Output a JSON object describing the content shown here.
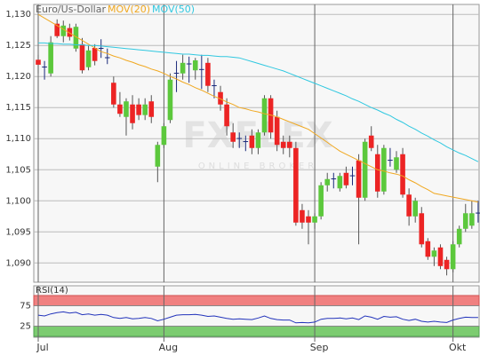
{
  "chart_data": {
    "type": "candlestick",
    "title": "Euro/Us-Dollar",
    "watermark": "FXFLEX",
    "watermark_sub": "ONLINE BROKER",
    "categories": [
      "Jul",
      null,
      null,
      null,
      null,
      null,
      null,
      null,
      null,
      null,
      null,
      null,
      null,
      null,
      null,
      null,
      null,
      null,
      null,
      null,
      "Aug",
      null,
      null,
      null,
      null,
      null,
      null,
      null,
      null,
      null,
      null,
      null,
      null,
      null,
      null,
      null,
      null,
      null,
      null,
      null,
      null,
      null,
      null,
      null,
      "Sep",
      null,
      null,
      null,
      null,
      null,
      null,
      null,
      null,
      null,
      null,
      null,
      null,
      null,
      null,
      null,
      null,
      null,
      null,
      null,
      null,
      null,
      "Okt",
      null,
      null,
      null,
      null
    ],
    "ylim": [
      1.0869,
      1.1316
    ],
    "yticks": [
      {
        "value": 1.09,
        "label": "1,090"
      },
      {
        "value": 1.095,
        "label": "1,095"
      },
      {
        "value": 1.1,
        "label": "1,100"
      },
      {
        "value": 1.105,
        "label": "1,105"
      },
      {
        "value": 1.11,
        "label": "1,110"
      },
      {
        "value": 1.115,
        "label": "1,115"
      },
      {
        "value": 1.12,
        "label": "1,120"
      },
      {
        "value": 1.125,
        "label": "1,125"
      },
      {
        "value": 1.13,
        "label": "1,130"
      }
    ],
    "grid": true,
    "up_color": "#5cc83c",
    "down_color": "#ec2424",
    "doji_color": "#1a2a7a",
    "open": [
      1.1227,
      1.1215,
      1.1205,
      1.1285,
      1.1265,
      1.1278,
      1.1245,
      1.1252,
      1.1215,
      1.1246,
      1.1245,
      1.123,
      1.119,
      1.1155,
      1.1135,
      1.1155,
      1.1155,
      1.1138,
      1.116,
      1.1055,
      1.109,
      1.113,
      1.1205,
      1.1205,
      1.122,
      1.121,
      1.1212,
      1.1222,
      1.1185,
      1.1175,
      1.1155,
      1.111,
      1.11,
      1.1096,
      1.1105,
      1.1085,
      1.111,
      1.1165,
      1.1135,
      1.1095,
      1.1095,
      1.1085,
      1.0985,
      1.0975,
      1.0965,
      1.0975,
      1.1025,
      1.1035,
      1.102,
      1.1045,
      1.104,
      1.1065,
      1.1005,
      1.1105,
      1.1075,
      1.1015,
      1.1065,
      1.105,
      1.1075,
      1.101,
      1.0975,
      1.098,
      1.0935,
      1.091,
      1.0925,
      1.0905,
      1.089,
      1.093,
      1.0955,
      1.096,
      1.098
    ],
    "high": [
      1.1235,
      1.1225,
      1.1265,
      1.1292,
      1.129,
      1.1285,
      1.1285,
      1.1262,
      1.125,
      1.1252,
      1.126,
      1.1245,
      1.12,
      1.1175,
      1.1165,
      1.117,
      1.1165,
      1.1165,
      1.117,
      1.1095,
      1.1125,
      1.1205,
      1.1225,
      1.1235,
      1.1232,
      1.123,
      1.1235,
      1.123,
      1.1195,
      1.1185,
      1.1165,
      1.1125,
      1.111,
      1.1105,
      1.1115,
      1.1115,
      1.117,
      1.117,
      1.1145,
      1.1105,
      1.1105,
      1.1095,
      1.0995,
      1.0985,
      1.098,
      1.103,
      1.1045,
      1.1045,
      1.1045,
      1.1055,
      1.1055,
      1.1075,
      1.11,
      1.112,
      1.109,
      1.109,
      1.1085,
      1.108,
      1.1085,
      1.102,
      1.1005,
      1.099,
      1.094,
      1.0925,
      1.093,
      1.091,
      1.0935,
      1.096,
      1.0995,
      1.1,
      1.1
    ],
    "low": [
      1.1205,
      1.1195,
      1.12,
      1.1262,
      1.1255,
      1.1258,
      1.124,
      1.1205,
      1.121,
      1.1218,
      1.123,
      1.122,
      1.115,
      1.1135,
      1.1105,
      1.1115,
      1.113,
      1.113,
      1.1125,
      1.103,
      1.1085,
      1.1125,
      1.1175,
      1.1195,
      1.119,
      1.1195,
      1.118,
      1.1175,
      1.1165,
      1.1145,
      1.1105,
      1.1085,
      1.1085,
      1.108,
      1.1075,
      1.1075,
      1.1105,
      1.11,
      1.108,
      1.1075,
      1.107,
      1.096,
      1.0955,
      1.093,
      1.0955,
      1.097,
      1.1015,
      1.102,
      1.1015,
      1.102,
      1.1025,
      1.093,
      1.1,
      1.108,
      1.1005,
      1.101,
      1.1055,
      1.1045,
      1.1005,
      1.096,
      1.0965,
      1.0925,
      1.0905,
      1.0895,
      1.089,
      1.088,
      1.0885,
      1.0925,
      1.095,
      1.0955,
      1.0965
    ],
    "close": [
      1.1219,
      1.1216,
      1.1255,
      1.1265,
      1.1282,
      1.1264,
      1.128,
      1.121,
      1.1242,
      1.1225,
      1.1246,
      1.1231,
      1.1155,
      1.114,
      1.116,
      1.1125,
      1.1138,
      1.1155,
      1.1135,
      1.109,
      1.112,
      1.1195,
      1.1206,
      1.1222,
      1.1221,
      1.1226,
      1.1211,
      1.1185,
      1.1186,
      1.1155,
      1.112,
      1.1095,
      1.1101,
      1.1095,
      1.1085,
      1.111,
      1.1165,
      1.111,
      1.109,
      1.1085,
      1.1085,
      1.0965,
      1.0965,
      1.0965,
      1.0975,
      1.1025,
      1.1035,
      1.1036,
      1.104,
      1.1025,
      1.1041,
      1.1005,
      1.1095,
      1.1085,
      1.1015,
      1.1085,
      1.1066,
      1.107,
      1.101,
      1.0975,
      1.1,
      1.093,
      1.091,
      1.092,
      1.0895,
      1.089,
      1.093,
      1.0955,
      1.098,
      1.098,
      1.0981
    ],
    "series": [
      {
        "name": "MOV(20)",
        "color": "#f0a820",
        "values": [
          1.13,
          1.1294,
          1.1288,
          1.1282,
          1.1276,
          1.127,
          1.1264,
          1.1258,
          1.1252,
          1.1246,
          1.124,
          1.1237,
          1.1233,
          1.123,
          1.1226,
          1.1223,
          1.1219,
          1.1216,
          1.1212,
          1.1209,
          1.1205,
          1.12,
          1.1196,
          1.1191,
          1.1187,
          1.1182,
          1.1178,
          1.1173,
          1.1168,
          1.1164,
          1.1159,
          1.1155,
          1.115,
          1.1148,
          1.1145,
          1.1143,
          1.114,
          1.1138,
          1.1135,
          1.1131,
          1.1127,
          1.1123,
          1.1119,
          1.1115,
          1.1108,
          1.1101,
          1.1094,
          1.1087,
          1.108,
          1.1075,
          1.107,
          1.1065,
          1.106,
          1.1055,
          1.105,
          1.1048,
          1.1045,
          1.1043,
          1.104,
          1.1034,
          1.1029,
          1.1023,
          1.1018,
          1.1012,
          1.101,
          1.1008,
          1.1006,
          1.1004,
          1.1002,
          1.1,
          1.0998
        ]
      },
      {
        "name": "MOV(50)",
        "color": "#30c8e0",
        "values": [
          1.1254,
          1.1254,
          1.1253,
          1.1253,
          1.1252,
          1.1252,
          1.1251,
          1.1251,
          1.125,
          1.125,
          1.1249,
          1.1248,
          1.1247,
          1.1246,
          1.1245,
          1.1244,
          1.1243,
          1.1242,
          1.1241,
          1.124,
          1.1239,
          1.1238,
          1.1237,
          1.1236,
          1.1236,
          1.1235,
          1.1234,
          1.1234,
          1.1233,
          1.1232,
          1.1232,
          1.1231,
          1.123,
          1.1227,
          1.1224,
          1.1221,
          1.1218,
          1.1215,
          1.1212,
          1.1209,
          1.1205,
          1.1201,
          1.1197,
          1.1193,
          1.1189,
          1.1185,
          1.1181,
          1.1177,
          1.1173,
          1.1169,
          1.1164,
          1.116,
          1.1155,
          1.115,
          1.1146,
          1.1141,
          1.1137,
          1.1131,
          1.1126,
          1.112,
          1.1115,
          1.1109,
          1.1104,
          1.1098,
          1.1093,
          1.1087,
          1.1082,
          1.1077,
          1.1073,
          1.1068,
          1.1063
        ]
      }
    ],
    "rsi": {
      "name": "RSI(14)",
      "color": "#2233bb",
      "ylim": [
        0,
        100
      ],
      "yticks": [
        25,
        75
      ],
      "upper_color": "#f08080",
      "lower_color": "#7ccc70",
      "values": [
        52,
        50,
        55,
        58,
        60,
        57,
        59,
        53,
        55,
        52,
        54,
        52,
        46,
        44,
        46,
        43,
        44,
        46,
        44,
        38,
        42,
        47,
        52,
        53,
        53,
        54,
        52,
        49,
        50,
        47,
        44,
        42,
        43,
        42,
        41,
        45,
        50,
        44,
        41,
        40,
        40,
        33,
        34,
        33,
        35,
        42,
        44,
        44,
        45,
        43,
        45,
        41,
        50,
        47,
        42,
        49,
        47,
        48,
        42,
        39,
        42,
        37,
        35,
        37,
        35,
        34,
        40,
        44,
        47,
        46,
        46
      ]
    }
  }
}
